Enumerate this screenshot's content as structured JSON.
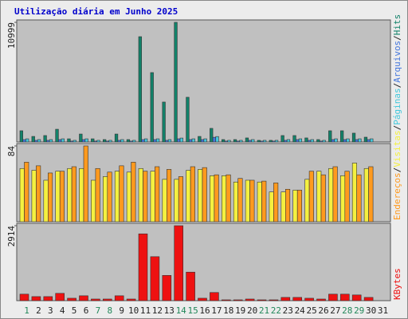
{
  "chart_data": [
    {
      "type": "bar",
      "title": "Utilização diária em Junho 2025",
      "ylim": [
        0,
        10999
      ],
      "yticks": [
        10999
      ],
      "series": [
        {
          "name": "Hits",
          "color": "#12826a",
          "values": [
            1030,
            510,
            590,
            1170,
            290,
            730,
            290,
            220,
            730,
            220,
            9680,
            6380,
            3670,
            10999,
            4110,
            510,
            1250,
            220,
            220,
            370,
            150,
            150,
            590,
            590,
            370,
            220,
            1030,
            1030,
            810,
            440,
            null
          ]
        },
        {
          "name": "Arquivos",
          "color": "#4477dd",
          "values": [
            220,
            150,
            150,
            220,
            80,
            220,
            80,
            80,
            150,
            80,
            220,
            220,
            150,
            290,
            220,
            220,
            430,
            80,
            80,
            150,
            80,
            80,
            150,
            220,
            150,
            80,
            220,
            220,
            220,
            220,
            null
          ]
        },
        {
          "name": "Páginas",
          "color": "#44c8dc",
          "values": [
            290,
            220,
            220,
            290,
            150,
            290,
            150,
            150,
            220,
            150,
            290,
            290,
            220,
            360,
            290,
            290,
            500,
            150,
            150,
            220,
            150,
            150,
            220,
            290,
            220,
            150,
            290,
            290,
            290,
            290,
            null
          ]
        }
      ]
    },
    {
      "type": "bar",
      "ylim": [
        0,
        84
      ],
      "yticks": [
        84
      ],
      "series": [
        {
          "name": "Visitas",
          "color": "#f4f040",
          "values": [
            59,
            57,
            46,
            56,
            59,
            59,
            46,
            50,
            56,
            55,
            59,
            56,
            47,
            47,
            57,
            58,
            51,
            51,
            44,
            46,
            44,
            33,
            33,
            35,
            47,
            56,
            59,
            51,
            65,
            59,
            null
          ]
        },
        {
          "name": "Endereços",
          "color": "#ff9a1e",
          "values": [
            66,
            62,
            54,
            56,
            61,
            84,
            59,
            55,
            62,
            66,
            56,
            61,
            58,
            50,
            61,
            60,
            52,
            52,
            48,
            46,
            45,
            43,
            36,
            35,
            56,
            52,
            61,
            56,
            52,
            61,
            null
          ]
        }
      ]
    },
    {
      "type": "bar",
      "ylim": [
        0,
        2914
      ],
      "yticks": [
        2914
      ],
      "categories": [
        "1",
        "2",
        "3",
        "4",
        "5",
        "6",
        "7",
        "8",
        "9",
        "10",
        "11",
        "12",
        "13",
        "14",
        "15",
        "16",
        "17",
        "18",
        "19",
        "20",
        "21",
        "22",
        "23",
        "24",
        "25",
        "26",
        "27",
        "28",
        "29",
        "30",
        "31"
      ],
      "highlight": [
        "1",
        "7",
        "8",
        "14",
        "15",
        "21",
        "22",
        "28",
        "29"
      ],
      "highlight_color": "#22885a",
      "legend_separator": "/",
      "series": [
        {
          "name": "KBytes",
          "color": "#ee1111",
          "values": [
            253,
            158,
            158,
            285,
            95,
            190,
            63,
            63,
            190,
            63,
            2597,
            1710,
            982,
            2914,
            1109,
            95,
            317,
            32,
            32,
            63,
            32,
            32,
            127,
            127,
            95,
            63,
            253,
            253,
            222,
            127,
            null
          ]
        }
      ]
    }
  ]
}
